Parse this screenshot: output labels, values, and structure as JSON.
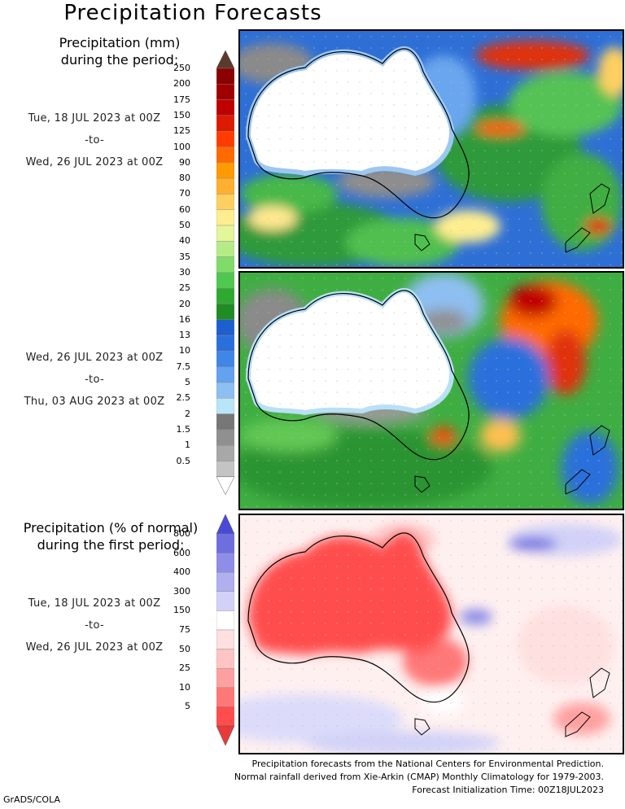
{
  "title": "Precipitation Forecasts",
  "legend_mm": {
    "title_line1": "Precipitation (mm)",
    "title_line2": "during the period:",
    "levels": [
      "250",
      "200",
      "175",
      "150",
      "125",
      "100",
      "90",
      "80",
      "70",
      "60",
      "50",
      "40",
      "35",
      "30",
      "25",
      "20",
      "16",
      "13",
      "10",
      "7.5",
      "5",
      "2.5",
      "2",
      "1.5",
      "1",
      "0.5"
    ],
    "colors": [
      "#8b0000",
      "#a00000",
      "#c00000",
      "#dc1a00",
      "#ff3c00",
      "#ff6a00",
      "#ff9a00",
      "#ffb030",
      "#ffd060",
      "#ffee90",
      "#e4f59a",
      "#b6ec87",
      "#80dc6a",
      "#50c850",
      "#2eaa2e",
      "#1f8c24",
      "#1e5fd0",
      "#2a70dc",
      "#3f86e6",
      "#62a2ee",
      "#8ebff2",
      "#b8e6f8",
      "#777777",
      "#909090",
      "#a8a8a8",
      "#c4c4c4"
    ],
    "top_color": "#5a3a2a"
  },
  "period1": {
    "start": "Tue, 18 JUL 2023 at 00Z",
    "sep": "-to-",
    "end": "Wed, 26 JUL 2023 at 00Z"
  },
  "period2": {
    "start": "Wed, 26 JUL 2023 at 00Z",
    "sep": "-to-",
    "end": "Thu, 03 AUG 2023 at 00Z"
  },
  "legend_pct": {
    "title_line1": "Precipitation (% of normal)",
    "title_line2": "during the first period:",
    "levels": [
      "800",
      "600",
      "400",
      "300",
      "150",
      "75",
      "50",
      "25",
      "10",
      "5"
    ],
    "colors": [
      "#6e6ee0",
      "#8e8ee8",
      "#b0b0f0",
      "#d2d2f8",
      "#ffffff",
      "#ffe0e0",
      "#ffc4c4",
      "#ffa0a0",
      "#ff7878",
      "#ff4d4d"
    ],
    "top_color": "#4a4ad8",
    "bottom_color": "#e83a3a"
  },
  "period3": {
    "start": "Tue, 18 JUL 2023 at 00Z",
    "sep": "-to-",
    "end": "Wed, 26 JUL 2023 at 00Z"
  },
  "footer": {
    "line1": "Precipitation forecasts from the National Centers for Environmental Prediction.",
    "line2": "Normal rainfall derived from Xie-Arkin (CMAP) Monthly Climatology for 1979-2003.",
    "line3": "Forecast Initialization Time: 00Z18JUL2023"
  },
  "credit": "GrADS/COLA"
}
